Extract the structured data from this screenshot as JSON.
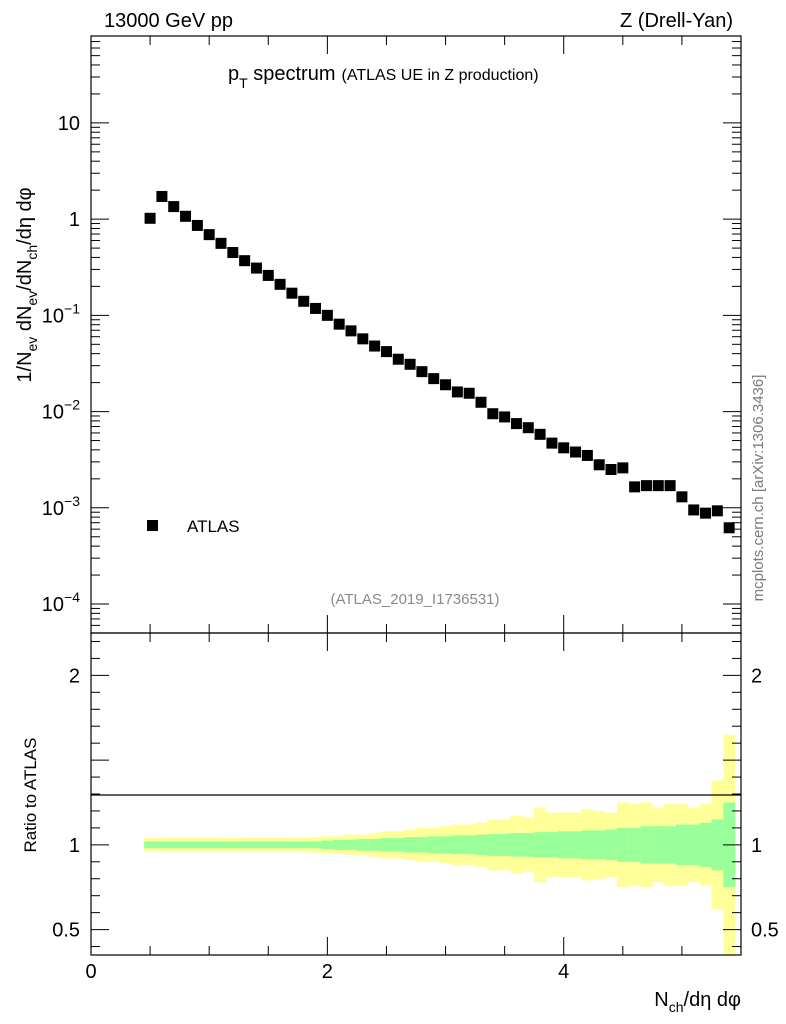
{
  "header": {
    "left": "13000 GeV pp",
    "right": "Z (Drell-Yan)"
  },
  "side_label": "mcplots.cern.ch [arXiv:1306.3436]",
  "reference": "(ATLAS_2019_I1736531)",
  "colors": {
    "marker": "#000000",
    "band_inner": "#99ff99",
    "band_outer": "#ffff99"
  },
  "chart_data": [
    {
      "type": "scatter",
      "panel": "main",
      "title": {
        "main": "p",
        "sub": "T",
        "rest": " spectrum",
        "note": "(ATLAS UE in Z production)"
      },
      "ylabel": {
        "parts": [
          "1/N",
          "ev",
          " dN",
          "ev",
          "/dN",
          "ch",
          "/dη dφ"
        ]
      },
      "yscale": "log",
      "ylim": [
        5e-05,
        80
      ],
      "xlim": [
        0,
        5.5
      ],
      "ytick_labels": [
        {
          "value": 10,
          "base": "10",
          "exp": ""
        },
        {
          "value": 1,
          "base": "1",
          "exp": ""
        },
        {
          "value": 0.1,
          "base": "10",
          "exp": "−1"
        },
        {
          "value": 0.01,
          "base": "10",
          "exp": "−2"
        },
        {
          "value": 0.001,
          "base": "10",
          "exp": "−3"
        },
        {
          "value": 0.0001,
          "base": "10",
          "exp": "−4"
        }
      ],
      "legend": {
        "position": "bottom-left",
        "entries": [
          "ATLAS"
        ]
      },
      "series": [
        {
          "name": "ATLAS",
          "x": [
            0.5,
            0.6,
            0.7,
            0.8,
            0.9,
            1.0,
            1.1,
            1.2,
            1.3,
            1.4,
            1.5,
            1.6,
            1.7,
            1.8,
            1.9,
            2.0,
            2.1,
            2.2,
            2.3,
            2.4,
            2.5,
            2.6,
            2.7,
            2.8,
            2.9,
            3.0,
            3.1,
            3.2,
            3.3,
            3.4,
            3.5,
            3.6,
            3.7,
            3.8,
            3.9,
            4.0,
            4.1,
            4.2,
            4.3,
            4.4,
            4.5,
            4.6,
            4.7,
            4.8,
            4.9,
            5.0,
            5.1,
            5.2,
            5.3,
            5.4
          ],
          "y": [
            1.02,
            1.72,
            1.35,
            1.07,
            0.86,
            0.69,
            0.56,
            0.45,
            0.37,
            0.31,
            0.26,
            0.21,
            0.17,
            0.14,
            0.118,
            0.1,
            0.081,
            0.069,
            0.057,
            0.048,
            0.042,
            0.035,
            0.031,
            0.026,
            0.022,
            0.019,
            0.016,
            0.0155,
            0.0125,
            0.0095,
            0.0088,
            0.0075,
            0.0068,
            0.0058,
            0.0047,
            0.0042,
            0.0038,
            0.0035,
            0.0028,
            0.0025,
            0.0026,
            0.00165,
            0.0017,
            0.0017,
            0.0017,
            0.0013,
            0.00095,
            0.00088,
            0.00093,
            0.00062
          ]
        }
      ]
    },
    {
      "type": "area",
      "panel": "ratio",
      "ylabel": "Ratio to ATLAS",
      "xlabel": {
        "parts": [
          "N",
          "ch",
          "/dη dφ"
        ]
      },
      "xlim": [
        0,
        5.5
      ],
      "ylim": [
        0.35,
        2.25
      ],
      "xtick_labels": [
        {
          "value": 0,
          "label": "0"
        },
        {
          "value": 2,
          "label": "2"
        },
        {
          "value": 4,
          "label": "4"
        }
      ],
      "ytick_labels": [
        {
          "value": 2,
          "label": "2"
        },
        {
          "value": 1,
          "label": "1"
        },
        {
          "value": 0.5,
          "label": "0.5"
        }
      ],
      "reference_line": 1,
      "bins": [
        0.45,
        0.55,
        0.65,
        0.75,
        0.85,
        0.95,
        1.05,
        1.15,
        1.25,
        1.35,
        1.45,
        1.55,
        1.65,
        1.75,
        1.85,
        1.95,
        2.05,
        2.15,
        2.25,
        2.35,
        2.45,
        2.55,
        2.65,
        2.75,
        2.85,
        2.95,
        3.05,
        3.15,
        3.25,
        3.35,
        3.45,
        3.55,
        3.65,
        3.75,
        3.85,
        3.95,
        4.05,
        4.15,
        4.25,
        4.35,
        4.45,
        4.55,
        4.65,
        4.75,
        4.85,
        4.95,
        5.05,
        5.15,
        5.25,
        5.35,
        5.45
      ],
      "inner_band": [
        0.02,
        0.02,
        0.02,
        0.02,
        0.02,
        0.02,
        0.02,
        0.02,
        0.02,
        0.02,
        0.02,
        0.02,
        0.02,
        0.02,
        0.02,
        0.025,
        0.03,
        0.03,
        0.035,
        0.035,
        0.04,
        0.04,
        0.045,
        0.045,
        0.05,
        0.05,
        0.055,
        0.055,
        0.06,
        0.065,
        0.065,
        0.07,
        0.07,
        0.075,
        0.075,
        0.08,
        0.08,
        0.085,
        0.085,
        0.09,
        0.1,
        0.1,
        0.11,
        0.11,
        0.11,
        0.12,
        0.12,
        0.13,
        0.15,
        0.25
      ],
      "outer_band": [
        0.04,
        0.04,
        0.04,
        0.04,
        0.04,
        0.04,
        0.04,
        0.04,
        0.04,
        0.04,
        0.04,
        0.04,
        0.04,
        0.04,
        0.045,
        0.05,
        0.05,
        0.06,
        0.06,
        0.07,
        0.08,
        0.08,
        0.09,
        0.1,
        0.1,
        0.11,
        0.12,
        0.12,
        0.13,
        0.15,
        0.15,
        0.17,
        0.16,
        0.22,
        0.19,
        0.19,
        0.19,
        0.21,
        0.2,
        0.19,
        0.25,
        0.24,
        0.25,
        0.22,
        0.24,
        0.24,
        0.22,
        0.24,
        0.38,
        0.65
      ]
    }
  ]
}
